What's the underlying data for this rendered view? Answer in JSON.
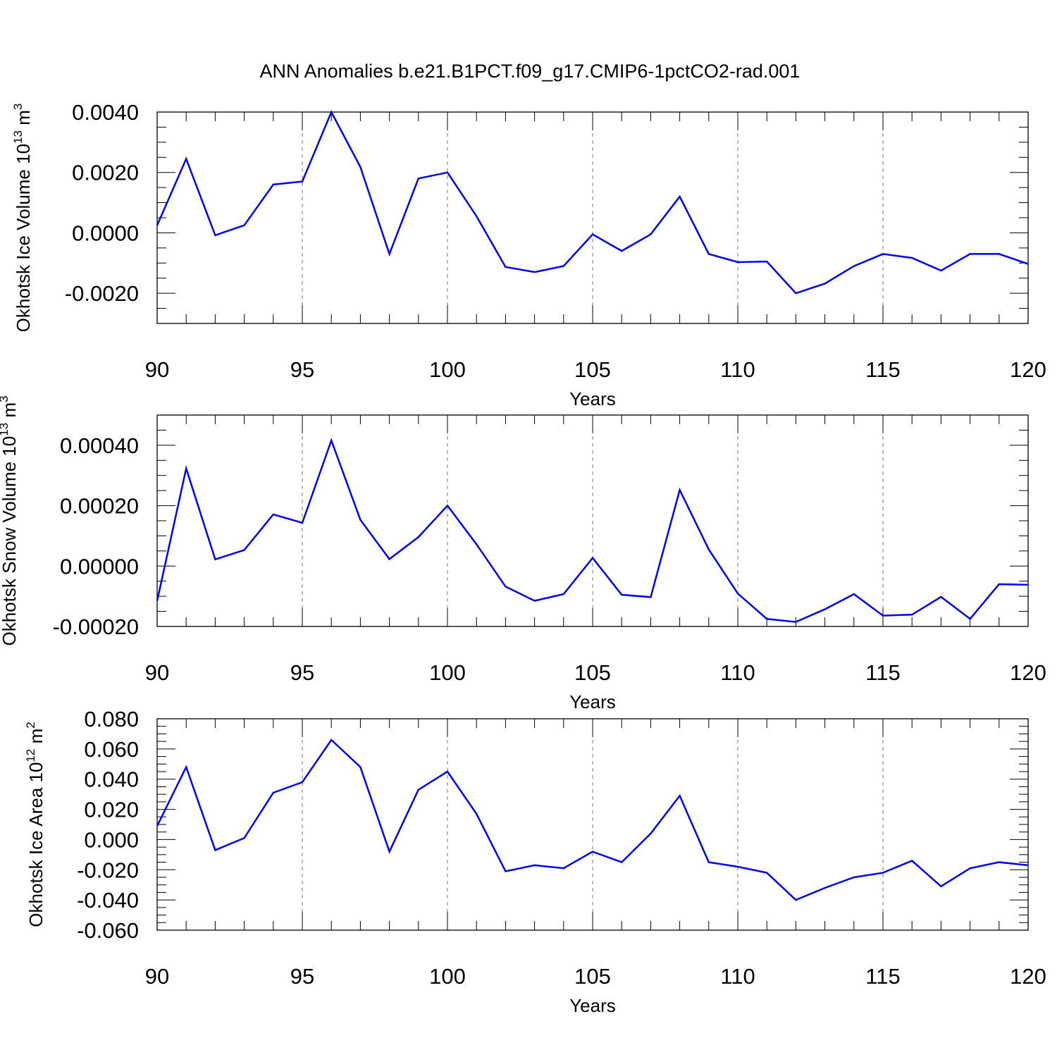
{
  "title": "ANN Anomalies b.e21.B1PCT.f09_g17.CMIP6-1pctCO2-rad.001",
  "colors": {
    "line": "#0000ff",
    "axes": "#000000",
    "grid": "#777777"
  },
  "chart_data": [
    {
      "type": "line",
      "xlabel": "Years",
      "ylabel": {
        "main": "Okhotsk Ice Volume 10",
        "exp": "13",
        "unit": " m",
        "unit_exp": "3"
      },
      "xlim": [
        90,
        120
      ],
      "ylim": [
        -0.003,
        0.004
      ],
      "xticks": [
        "90",
        "95",
        "100",
        "105",
        "110",
        "115",
        "120"
      ],
      "yticks": [
        {
          "v": 0.004,
          "label": "0.0040"
        },
        {
          "v": 0.002,
          "label": "0.0020"
        },
        {
          "v": 0.0,
          "label": "0.0000"
        },
        {
          "v": -0.002,
          "label": "-0.0020"
        }
      ],
      "grid": "vertical dashed at x ticks",
      "x": [
        90,
        91,
        92,
        93,
        94,
        95,
        96,
        97,
        98,
        99,
        100,
        101,
        102,
        103,
        104,
        105,
        106,
        107,
        108,
        109,
        110,
        111,
        112,
        113,
        114,
        115,
        116,
        117,
        118,
        119,
        120
      ],
      "y": [
        0.00025,
        0.00245,
        -8e-05,
        0.00025,
        0.0016,
        0.0017,
        0.004,
        0.00218,
        -0.0007,
        0.0018,
        0.002,
        0.00055,
        -0.00113,
        -0.0013,
        -0.0011,
        -5e-05,
        -0.0006,
        -5e-05,
        0.0012,
        -0.0007,
        -0.00097,
        -0.00095,
        -0.002,
        -0.00168,
        -0.0011,
        -0.0007,
        -0.00083,
        -0.00125,
        -0.0007,
        -0.0007,
        -0.00103
      ]
    },
    {
      "type": "line",
      "xlabel": "Years",
      "ylabel": {
        "main": "Okhotsk Snow Volume 10",
        "exp": "13",
        "unit": " m",
        "unit_exp": "3"
      },
      "xlim": [
        90,
        120
      ],
      "ylim": [
        -0.0002,
        0.0005
      ],
      "xticks": [
        "90",
        "95",
        "100",
        "105",
        "110",
        "115",
        "120"
      ],
      "yticks": [
        {
          "v": 0.0004,
          "label": "0.00040"
        },
        {
          "v": 0.0002,
          "label": "0.00020"
        },
        {
          "v": 0.0,
          "label": "0.00000"
        },
        {
          "v": -0.0002,
          "label": "-0.00020"
        }
      ],
      "grid": "vertical dashed at x ticks",
      "x": [
        90,
        91,
        92,
        93,
        94,
        95,
        96,
        97,
        98,
        99,
        100,
        101,
        102,
        103,
        104,
        105,
        106,
        107,
        108,
        109,
        110,
        111,
        112,
        113,
        114,
        115,
        116,
        117,
        118,
        119,
        120
      ],
      "y": [
        -0.000115,
        0.000323,
        2.2e-05,
        5.3e-05,
        0.000171,
        0.000143,
        0.000416,
        0.000153,
        2.3e-05,
        9.6e-05,
        0.0002,
        7.2e-05,
        -6.8e-05,
        -0.000115,
        -9.3e-05,
        2.7e-05,
        -9.5e-05,
        -0.000103,
        0.000252,
        5.5e-05,
        -9.1e-05,
        -0.000175,
        -0.000185,
        -0.000143,
        -9.3e-05,
        -0.000164,
        -0.000161,
        -0.000102,
        -0.000175,
        -6e-05,
        -6.2e-05
      ]
    },
    {
      "type": "line",
      "xlabel": "Years",
      "ylabel": {
        "main": "Okhotsk Ice Area 10",
        "exp": "12",
        "unit": " m",
        "unit_exp": "2"
      },
      "xlim": [
        90,
        120
      ],
      "ylim": [
        -0.06,
        0.08
      ],
      "xticks": [
        "90",
        "95",
        "100",
        "105",
        "110",
        "115",
        "120"
      ],
      "yticks": [
        {
          "v": 0.08,
          "label": "0.080"
        },
        {
          "v": 0.06,
          "label": "0.060"
        },
        {
          "v": 0.04,
          "label": "0.040"
        },
        {
          "v": 0.02,
          "label": "0.020"
        },
        {
          "v": 0.0,
          "label": "0.000"
        },
        {
          "v": -0.02,
          "label": "-0.020"
        },
        {
          "v": -0.04,
          "label": "-0.040"
        },
        {
          "v": -0.06,
          "label": "-0.060"
        }
      ],
      "grid": "vertical dashed at x ticks",
      "x": [
        90,
        91,
        92,
        93,
        94,
        95,
        96,
        97,
        98,
        99,
        100,
        101,
        102,
        103,
        104,
        105,
        106,
        107,
        108,
        109,
        110,
        111,
        112,
        113,
        114,
        115,
        116,
        117,
        118,
        119,
        120
      ],
      "y": [
        0.009,
        0.048,
        -0.007,
        0.001,
        0.031,
        0.038,
        0.066,
        0.048,
        -0.008,
        0.033,
        0.045,
        0.017,
        -0.021,
        -0.017,
        -0.019,
        -0.008,
        -0.015,
        0.004,
        0.029,
        -0.015,
        -0.018,
        -0.022,
        -0.04,
        -0.032,
        -0.025,
        -0.022,
        -0.014,
        -0.031,
        -0.019,
        -0.015,
        -0.017
      ]
    }
  ]
}
